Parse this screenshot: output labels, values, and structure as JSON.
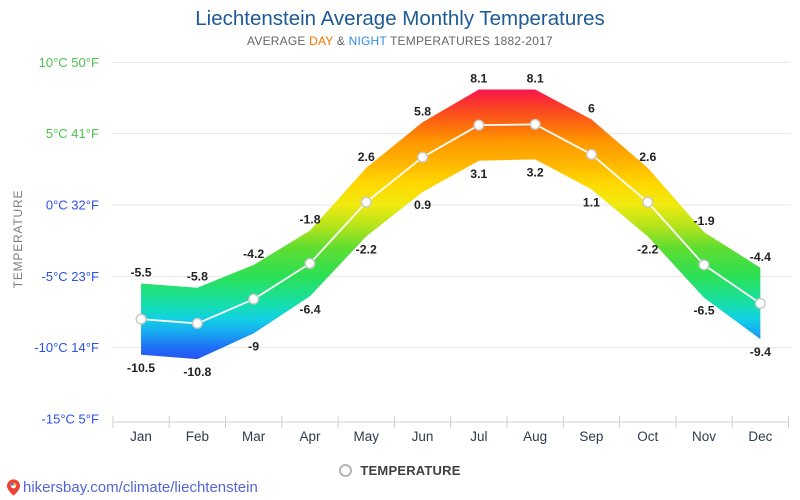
{
  "header": {
    "title": "Liechtenstein Average Monthly Temperatures",
    "subtitle_prefix": "AVERAGE ",
    "subtitle_day": "DAY",
    "subtitle_join": " & ",
    "subtitle_night": "NIGHT",
    "subtitle_suffix": " TEMPERATURES 1882-2017"
  },
  "chart_data": {
    "type": "area",
    "title": "Liechtenstein Average Monthly Temperatures",
    "subtitle": "AVERAGE DAY & NIGHT TEMPERATURES 1882-2017",
    "categories": [
      "Jan",
      "Feb",
      "Mar",
      "Apr",
      "May",
      "Jun",
      "Jul",
      "Aug",
      "Sep",
      "Oct",
      "Nov",
      "Dec"
    ],
    "series": [
      {
        "name": "Day",
        "values": [
          -5.5,
          -5.8,
          -4.2,
          -1.8,
          2.6,
          5.8,
          8.1,
          8.1,
          6,
          2.6,
          -1.9,
          -4.4
        ]
      },
      {
        "name": "Night",
        "values": [
          -10.5,
          -10.8,
          -9,
          -6.4,
          -2.2,
          0.9,
          3.1,
          3.2,
          1.1,
          -2.2,
          -6.5,
          -9.4
        ]
      },
      {
        "name": "Average",
        "values": [
          -8,
          -8.3,
          -6.6,
          -4.1,
          0.2,
          3.35,
          5.6,
          5.65,
          3.55,
          0.2,
          -4.2,
          -6.9
        ]
      }
    ],
    "ylabel": "TEMPERATURE",
    "xlabel": "",
    "ylim": [
      -15,
      10
    ],
    "grid": true,
    "legend_label": "TEMPERATURE",
    "legend_position": "bottom",
    "y_ticks": [
      {
        "label": "10°C 50°F",
        "t": 10,
        "warm": true
      },
      {
        "label": "5°C 41°F",
        "t": 5,
        "warm": true
      },
      {
        "label": "0°C 32°F",
        "t": 0,
        "warm": false
      },
      {
        "label": "-5°C 23°F",
        "t": -5,
        "warm": false
      },
      {
        "label": "-10°C 14°F",
        "t": -10,
        "warm": false
      },
      {
        "label": "-15°C 5°F",
        "t": -15,
        "warm": false
      }
    ],
    "units": "°C"
  },
  "colors": {
    "title": "#1d5a96",
    "subtitle": "#666666",
    "subtitle_day": "#ff7300",
    "subtitle_night": "#2f8ceb",
    "axis_green": "#4cc24c",
    "axis_blue": "#2a52e8",
    "month_label": "#2e3b4e",
    "data_label": "#222222",
    "grid": "#e7e7e7",
    "axis_line": "#cfcfcf",
    "avg_line": "#ffffff",
    "marker_stroke": "#c8c8c8",
    "legend_text": "#3f3f3f",
    "footer_link": "#5566d6",
    "pin": "#ee4034",
    "band_gradient": [
      {
        "t": 8.1,
        "color": "#f9164d"
      },
      {
        "t": 7.0,
        "color": "#fa3b29"
      },
      {
        "t": 5.6,
        "color": "#fd6c0d"
      },
      {
        "t": 4.5,
        "color": "#ff9600"
      },
      {
        "t": 3.0,
        "color": "#ffb400"
      },
      {
        "t": 1.5,
        "color": "#ffd800"
      },
      {
        "t": 0.0,
        "color": "#f0ea10"
      },
      {
        "t": -1.5,
        "color": "#b3e41c"
      },
      {
        "t": -3.0,
        "color": "#60dd30"
      },
      {
        "t": -5.0,
        "color": "#2be055"
      },
      {
        "t": -7.0,
        "color": "#16dfae"
      },
      {
        "t": -8.0,
        "color": "#12d0e5"
      },
      {
        "t": -9.0,
        "color": "#18a5f2"
      },
      {
        "t": -10.0,
        "color": "#1d6ef5"
      },
      {
        "t": -10.8,
        "color": "#2853f0"
      }
    ]
  },
  "footer": {
    "link": "hikersbay.com/climate/liechtenstein"
  }
}
